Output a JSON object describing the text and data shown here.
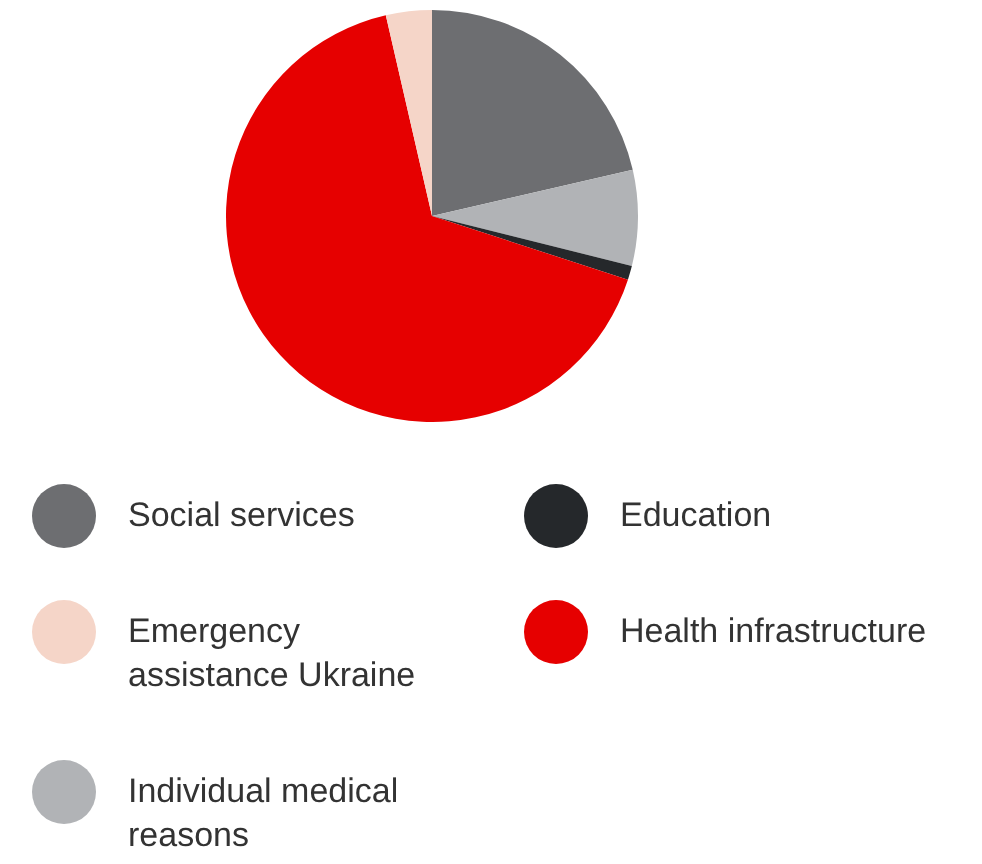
{
  "chart_data": {
    "type": "pie",
    "categories": [
      "Social services",
      "Individual medical reasons",
      "Education",
      "Health infrastructure",
      "Emergency assistance Ukraine"
    ],
    "values": [
      21.4,
      7.5,
      1.1,
      66.4,
      3.6
    ],
    "colors": [
      "#6d6e71",
      "#b1b3b6",
      "#25282b",
      "#e60000",
      "#f5d5c8"
    ],
    "legend": "bottom"
  }
}
